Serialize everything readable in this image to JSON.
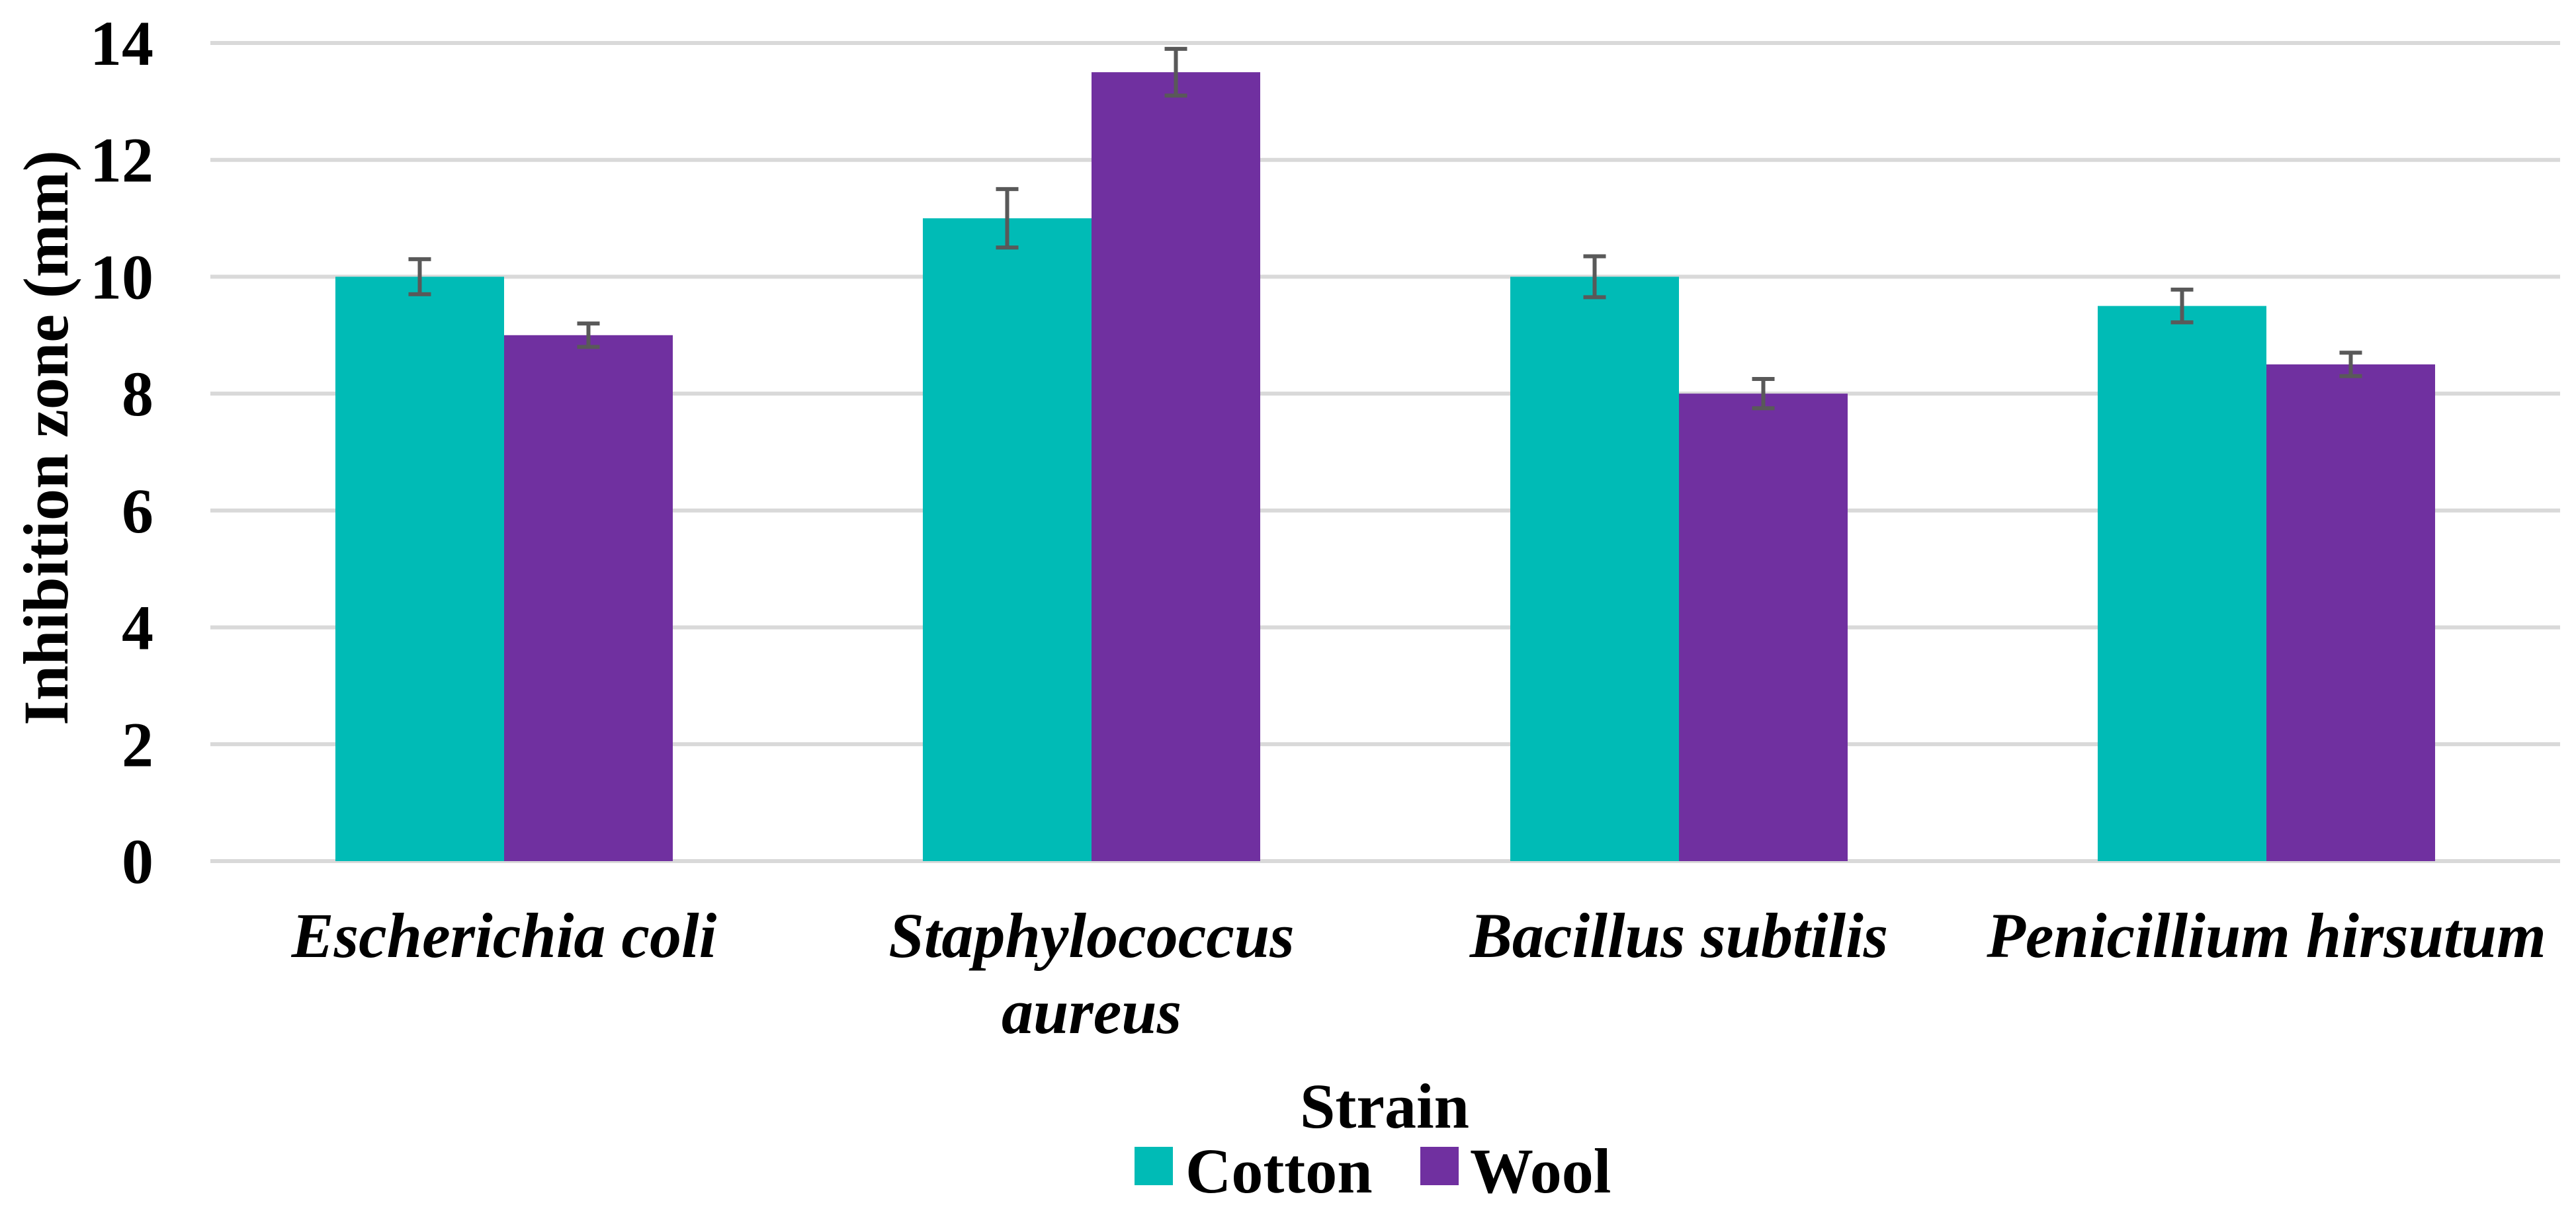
{
  "chart_data": {
    "type": "bar",
    "title": "",
    "xlabel": "Strain",
    "ylabel": "Inhibition zone (mm)",
    "ylim": [
      0,
      14
    ],
    "yticks": [
      0,
      2,
      4,
      6,
      8,
      10,
      12,
      14
    ],
    "grid": true,
    "legend_position": "bottom",
    "categories": [
      [
        "Escherichia coli"
      ],
      [
        "Staphylococcus",
        "aureus"
      ],
      [
        "Bacillus subtilis"
      ],
      [
        "Penicillium hirsutum"
      ]
    ],
    "series": [
      {
        "name": "Cotton",
        "color": "#00BBB6",
        "values": [
          10,
          11,
          10,
          9.5
        ],
        "errors": [
          0.3,
          0.5,
          0.35,
          0.28
        ]
      },
      {
        "name": "Wool",
        "color": "#7030A0",
        "values": [
          9,
          13.5,
          8,
          8.5
        ],
        "errors": [
          0.2,
          0.4,
          0.25,
          0.2
        ]
      }
    ],
    "colors": {
      "gridline": "#D9D9D9",
      "error_bar": "#595959",
      "text": "#000000"
    }
  }
}
